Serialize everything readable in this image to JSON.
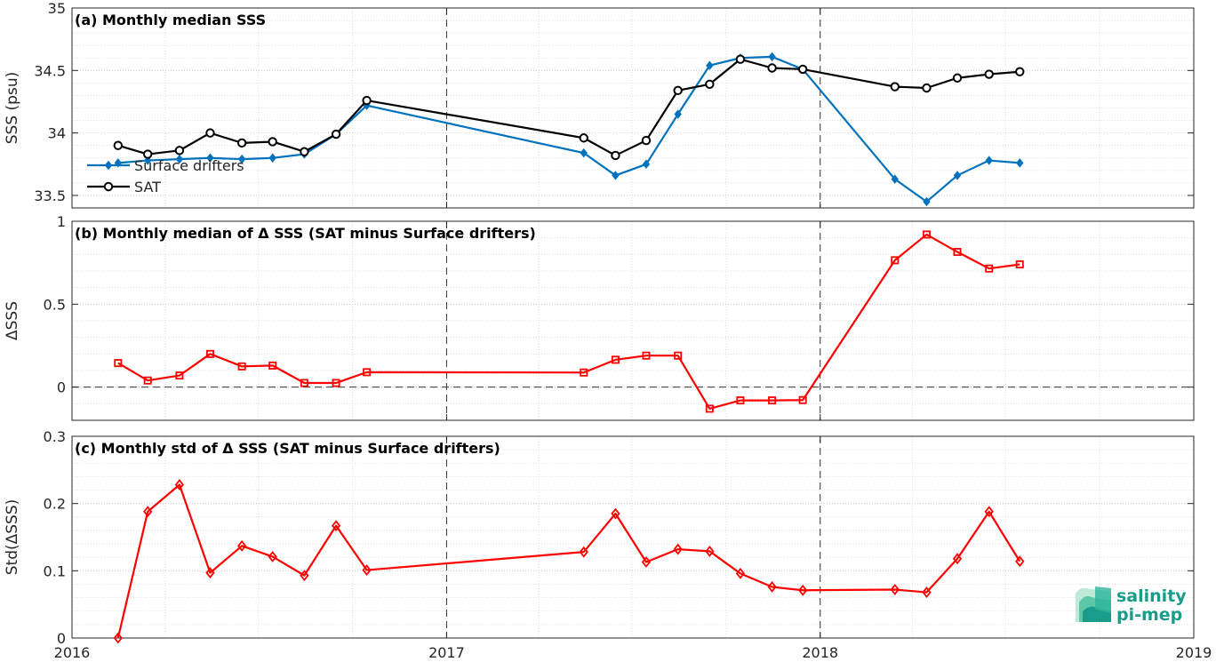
{
  "colors": {
    "drifters": "#0072BD",
    "sat": "#000000",
    "delta": "#FF0000",
    "logo": "#1a9c8a"
  },
  "logo": {
    "line1": "salinity",
    "line2": "pi-mep"
  },
  "x_axis": {
    "range": [
      "2016-01-01",
      "2019-01-01"
    ],
    "ticks": [
      {
        "date": "2016-01-01",
        "label": "2016"
      },
      {
        "date": "2017-01-01",
        "label": "2017"
      },
      {
        "date": "2018-01-01",
        "label": "2018"
      },
      {
        "date": "2019-01-01",
        "label": "2019"
      }
    ],
    "minor_grid_months": 3,
    "year_lines": "dashed"
  },
  "chart_data": [
    {
      "type": "line",
      "title": "(a) Monthly median SSS",
      "ylabel": "SSS (psu)",
      "ylim": [
        33.4,
        35
      ],
      "yticks": [
        {
          "v": 33.5,
          "label": "33.5"
        },
        {
          "v": 34,
          "label": "34"
        },
        {
          "v": 34.5,
          "label": "34.5"
        },
        {
          "v": 35,
          "label": "35"
        }
      ],
      "grid": true,
      "legend": {
        "placement": "lower-left"
      },
      "series": [
        {
          "name": "Surface drifters",
          "color": "#0072BD",
          "marker": "diamond-filled",
          "x": [
            "2016-02-15",
            "2016-03-15",
            "2016-04-15",
            "2016-05-15",
            "2016-06-15",
            "2016-07-15",
            "2016-08-15",
            "2016-09-15",
            "2016-10-15",
            "2017-05-15",
            "2017-06-15",
            "2017-07-15",
            "2017-08-15",
            "2017-09-15",
            "2017-10-15",
            "2017-11-15",
            "2017-12-15",
            "2018-03-15",
            "2018-04-15",
            "2018-05-15",
            "2018-06-15",
            "2018-07-15"
          ],
          "y": [
            33.76,
            33.78,
            33.79,
            33.8,
            33.79,
            33.8,
            33.83,
            33.99,
            34.22,
            33.84,
            33.66,
            33.75,
            34.15,
            34.54,
            34.6,
            34.61,
            34.51,
            33.63,
            33.45,
            33.66,
            33.78,
            33.76
          ]
        },
        {
          "name": "SAT",
          "color": "#000000",
          "marker": "circle-open",
          "x": [
            "2016-02-15",
            "2016-03-15",
            "2016-04-15",
            "2016-05-15",
            "2016-06-15",
            "2016-07-15",
            "2016-08-15",
            "2016-09-15",
            "2016-10-15",
            "2017-05-15",
            "2017-06-15",
            "2017-07-15",
            "2017-08-15",
            "2017-09-15",
            "2017-10-15",
            "2017-11-15",
            "2017-12-15",
            "2018-03-15",
            "2018-04-15",
            "2018-05-15",
            "2018-06-15",
            "2018-07-15"
          ],
          "y": [
            33.9,
            33.83,
            33.86,
            34.0,
            33.92,
            33.93,
            33.85,
            33.99,
            34.26,
            33.96,
            33.82,
            33.94,
            34.34,
            34.39,
            34.59,
            34.52,
            34.51,
            34.37,
            34.36,
            34.44,
            34.47,
            34.49
          ]
        }
      ]
    },
    {
      "type": "line",
      "title": "(b) Monthly median of Δ SSS (SAT minus Surface drifters)",
      "ylabel": "ΔSSS",
      "ylim": [
        -0.2,
        1
      ],
      "yticks": [
        {
          "v": 0,
          "label": "0"
        },
        {
          "v": 0.5,
          "label": "0.5"
        },
        {
          "v": 1,
          "label": "1"
        }
      ],
      "grid": true,
      "zero_line": "dashed",
      "series": [
        {
          "color": "#FF0000",
          "marker": "square-open",
          "x": [
            "2016-02-15",
            "2016-03-15",
            "2016-04-15",
            "2016-05-15",
            "2016-06-15",
            "2016-07-15",
            "2016-08-15",
            "2016-09-15",
            "2016-10-15",
            "2017-05-15",
            "2017-06-15",
            "2017-07-15",
            "2017-08-15",
            "2017-09-15",
            "2017-10-15",
            "2017-11-15",
            "2017-12-15",
            "2018-03-15",
            "2018-04-15",
            "2018-05-15",
            "2018-06-15",
            "2018-07-15"
          ],
          "y": [
            0.145,
            0.04,
            0.07,
            0.2,
            0.125,
            0.13,
            0.025,
            0.025,
            0.09,
            0.088,
            0.165,
            0.19,
            0.19,
            -0.13,
            -0.08,
            -0.08,
            -0.078,
            0.765,
            0.92,
            0.815,
            0.715,
            0.74
          ]
        }
      ]
    },
    {
      "type": "line",
      "title": "(c) Monthly std of Δ SSS (SAT minus Surface drifters)",
      "ylabel": "Std(ΔSSS)",
      "ylim": [
        0,
        0.3
      ],
      "yticks": [
        {
          "v": 0,
          "label": "0"
        },
        {
          "v": 0.1,
          "label": "0.1"
        },
        {
          "v": 0.2,
          "label": "0.2"
        },
        {
          "v": 0.3,
          "label": "0.3"
        }
      ],
      "grid": true,
      "series": [
        {
          "color": "#FF0000",
          "marker": "diamond-open",
          "x": [
            "2016-02-15",
            "2016-03-15",
            "2016-04-15",
            "2016-05-15",
            "2016-06-15",
            "2016-07-15",
            "2016-08-15",
            "2016-09-15",
            "2016-10-15",
            "2017-05-15",
            "2017-06-15",
            "2017-07-15",
            "2017-08-15",
            "2017-09-15",
            "2017-10-15",
            "2017-11-15",
            "2017-12-15",
            "2018-03-15",
            "2018-04-15",
            "2018-05-15",
            "2018-06-15",
            "2018-07-15"
          ],
          "y": [
            0.0,
            0.188,
            0.228,
            0.097,
            0.137,
            0.121,
            0.093,
            0.167,
            0.101,
            0.128,
            0.185,
            0.113,
            0.132,
            0.129,
            0.096,
            0.076,
            0.071,
            0.072,
            0.068,
            0.118,
            0.188,
            0.114
          ]
        }
      ]
    }
  ]
}
